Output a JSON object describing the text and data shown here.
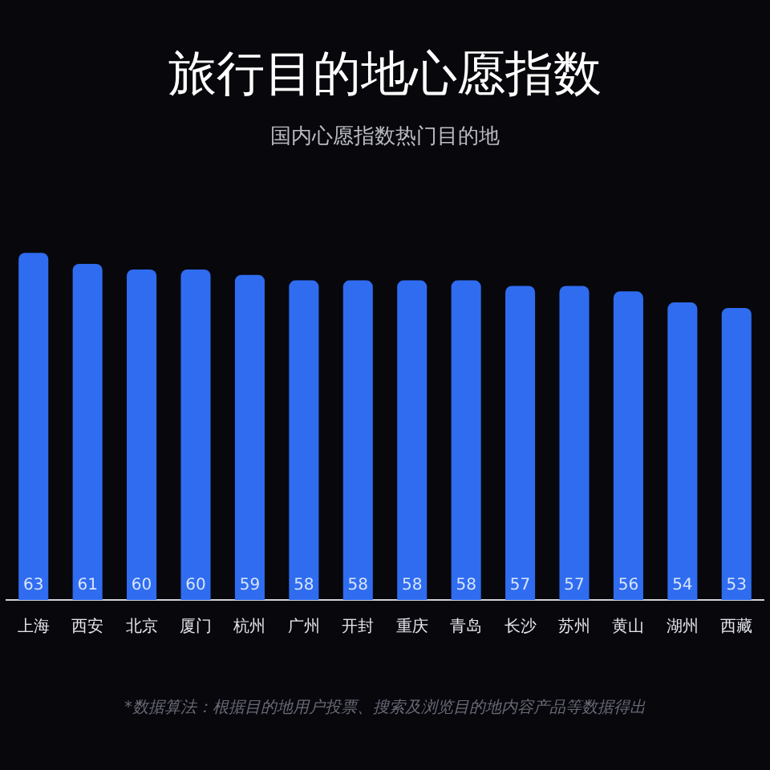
{
  "chart_data": {
    "type": "bar",
    "title": "旅行目的地心愿指数",
    "subtitle": "国内心愿指数热门目的地",
    "categories": [
      "上海",
      "西安",
      "北京",
      "厦门",
      "杭州",
      "广州",
      "开封",
      "重庆",
      "青岛",
      "长沙",
      "苏州",
      "黄山",
      "湖州",
      "西藏"
    ],
    "values": [
      63,
      61,
      60,
      60,
      59,
      58,
      58,
      58,
      58,
      57,
      57,
      56,
      54,
      53
    ],
    "color": "#2f6cf0",
    "data_labels": true,
    "grid": false,
    "legend": false,
    "annotations": [
      "*数据算法：根据目的地用户投票、搜索及浏览目的地内容产品等数据得出"
    ]
  }
}
